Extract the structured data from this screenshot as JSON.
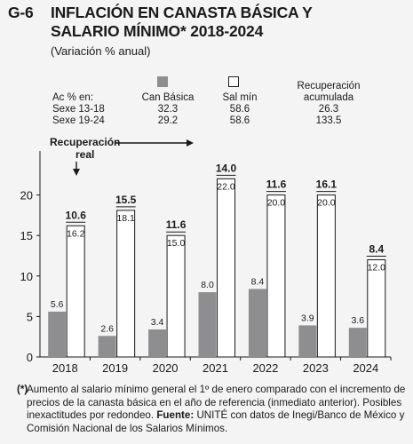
{
  "header": {
    "code": "G-6",
    "title_line1": "INFLACIÓN EN CANASTA BÁSICA Y",
    "title_line2": "SALARIO MÍNIMO* 2018-2024",
    "subtitle": "(Variación % anual)"
  },
  "legend": {
    "row_header": "Ac % en:",
    "rows": [
      "Sexe 13-18",
      "Sexe 19-24"
    ],
    "can_label": "Can Básica",
    "can_values": [
      "32.3",
      "29.2"
    ],
    "sal_label": "Sal mín",
    "sal_values": [
      "58.6",
      "58.6"
    ],
    "rec_label_1": "Recuperación",
    "rec_label_2": "acumulada",
    "rec_values": [
      "26.3",
      "133.5"
    ]
  },
  "annotation": {
    "line1": "Recuperación",
    "line2": "real"
  },
  "chart_data": {
    "type": "bar",
    "categories": [
      "2018",
      "2019",
      "2020",
      "2021",
      "2022",
      "2023",
      "2024"
    ],
    "series": [
      {
        "name": "Can Básica",
        "values": [
          5.6,
          2.6,
          3.4,
          8.0,
          8.4,
          3.9,
          3.6
        ],
        "color": "#8e8e90"
      },
      {
        "name": "Sal mín",
        "values": [
          16.2,
          18.1,
          15.0,
          22.0,
          20.0,
          20.0,
          12.0
        ],
        "color": "#ffffff"
      }
    ],
    "recuperacion_real": [
      10.6,
      15.5,
      11.6,
      14.0,
      11.6,
      16.1,
      8.4
    ],
    "value_labels_can": [
      "5.6",
      "2.6",
      "3.4",
      "8.0",
      "8.4",
      "3.9",
      "3.6"
    ],
    "value_labels_sal": [
      "16.2",
      "18.1",
      "15.0",
      "22.0",
      "20.0",
      "20.0",
      "12.0"
    ],
    "value_labels_rec": [
      "10.6",
      "15.5",
      "11.6",
      "14.0",
      "11.6",
      "16.1",
      "8.4"
    ],
    "yticks": [
      "0",
      "5",
      "10",
      "15",
      "20"
    ],
    "ylim": [
      0,
      25
    ],
    "grid": false
  },
  "footnote": {
    "asterisk": "(*)",
    "text": "Aumento al salario mínimo general el 1º de enero comparado con el incremento de precios de la canasta básica en el año de referencia (inmediato anterior). Posibles inexactitudes por redondeo.",
    "source_label": "Fuente:",
    "source_text": "UNITÉ con datos de Inegi/Banco de México y Comisión Nacional de los Salarios Mínimos."
  },
  "colors": {
    "can": "#8e8e90",
    "sal": "#ffffff",
    "background": "#f4f4f4"
  }
}
